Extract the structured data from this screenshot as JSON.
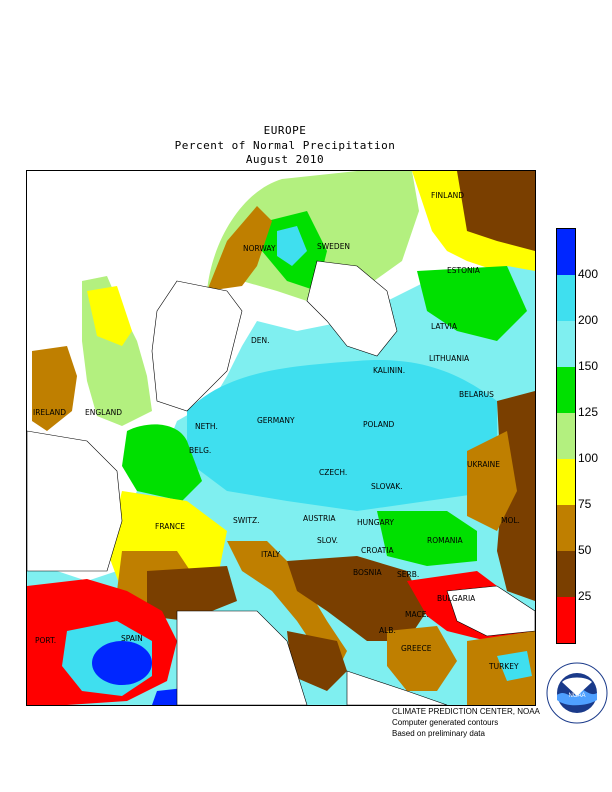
{
  "title": {
    "line1": "EUROPE",
    "line2": "Percent of Normal Precipitation",
    "line3": "August 2010"
  },
  "legend": {
    "colors": [
      "#ff0000",
      "#7a3f00",
      "#bf7f00",
      "#ffff00",
      "#b3f07f",
      "#00e000",
      "#7feff0",
      "#3fdfef",
      "#0026ff"
    ],
    "ticks": [
      "25",
      "50",
      "75",
      "100",
      "125",
      "150",
      "200",
      "400"
    ]
  },
  "countries": [
    "FINLAND",
    "SWEDEN",
    "NORWAY",
    "ESTONIA",
    "LATVIA",
    "LITHUANIA",
    "DEN.",
    "KALININ.",
    "BELARUS",
    "POLAND",
    "GERMANY",
    "NETH.",
    "BELG.",
    "IRELAND",
    "ENGLAND",
    "FRANCE",
    "SWITZ.",
    "AUSTRIA",
    "CZECH.",
    "SLOVAK.",
    "HUNGARY",
    "UKRAINE",
    "MOL.",
    "ROMANIA",
    "SLOV.",
    "CROATIA",
    "BOSNIA",
    "SERB.",
    "BULGARIA",
    "ITALY",
    "SPAIN",
    "PORT.",
    "GREECE",
    "TURKEY",
    "ALB.",
    "MACE."
  ],
  "credits": {
    "line1": "CLIMATE PREDICTION CENTER, NOAA",
    "line2": "Computer generated contours",
    "line3": "Based on preliminary data"
  },
  "logo": {
    "text": "NOAA",
    "ring_text": "NATIONAL OCEANIC AND ATMOSPHERIC ADMINISTRATION · U.S. DEPARTMENT OF COMMERCE"
  }
}
